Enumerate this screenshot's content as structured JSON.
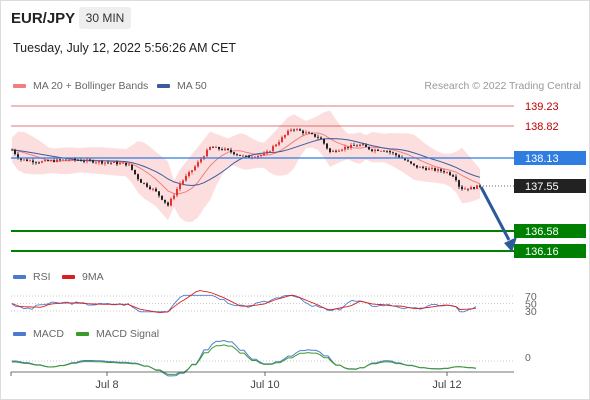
{
  "header": {
    "pair": "EUR/JPY",
    "timeframe": "30 MIN",
    "datetime": "Tuesday, July 12, 2022 5:56:26 AM CET"
  },
  "legend": {
    "ma20": "MA 20 + Bollinger Bands",
    "ma50": "MA 50",
    "credit": "Research © 2022 Trading Central"
  },
  "levels": [
    {
      "label": "139.23",
      "kind": "resistance"
    },
    {
      "label": "138.82",
      "kind": "resistance"
    },
    {
      "label": "138.13",
      "kind": "pivot"
    },
    {
      "label": "137.55",
      "kind": "last"
    },
    {
      "label": "136.58",
      "kind": "support"
    },
    {
      "label": "136.16",
      "kind": "support"
    }
  ],
  "rsi": {
    "label": "RSI",
    "ma_label": "9MA",
    "ticks": [
      "70",
      "50",
      "30"
    ]
  },
  "macd": {
    "label": "MACD",
    "signal_label": "MACD Signal",
    "tick": "0"
  },
  "xaxis": [
    "Jul 8",
    "Jul 10",
    "Jul 12"
  ],
  "colors": {
    "up": "#e23333",
    "down": "#222222",
    "band": "#fbd3d3",
    "ma20": "#f08080",
    "ma50": "#3a5ba0",
    "pivot": "#2f7de1",
    "support": "#008000",
    "resistance": "#c00000",
    "arrow": "#2a5a9a",
    "rsi": "#4a7bd0",
    "rsi_ma": "#d82020",
    "macd": "#4a7bd0",
    "macd_signal": "#3c9a2a"
  }
}
